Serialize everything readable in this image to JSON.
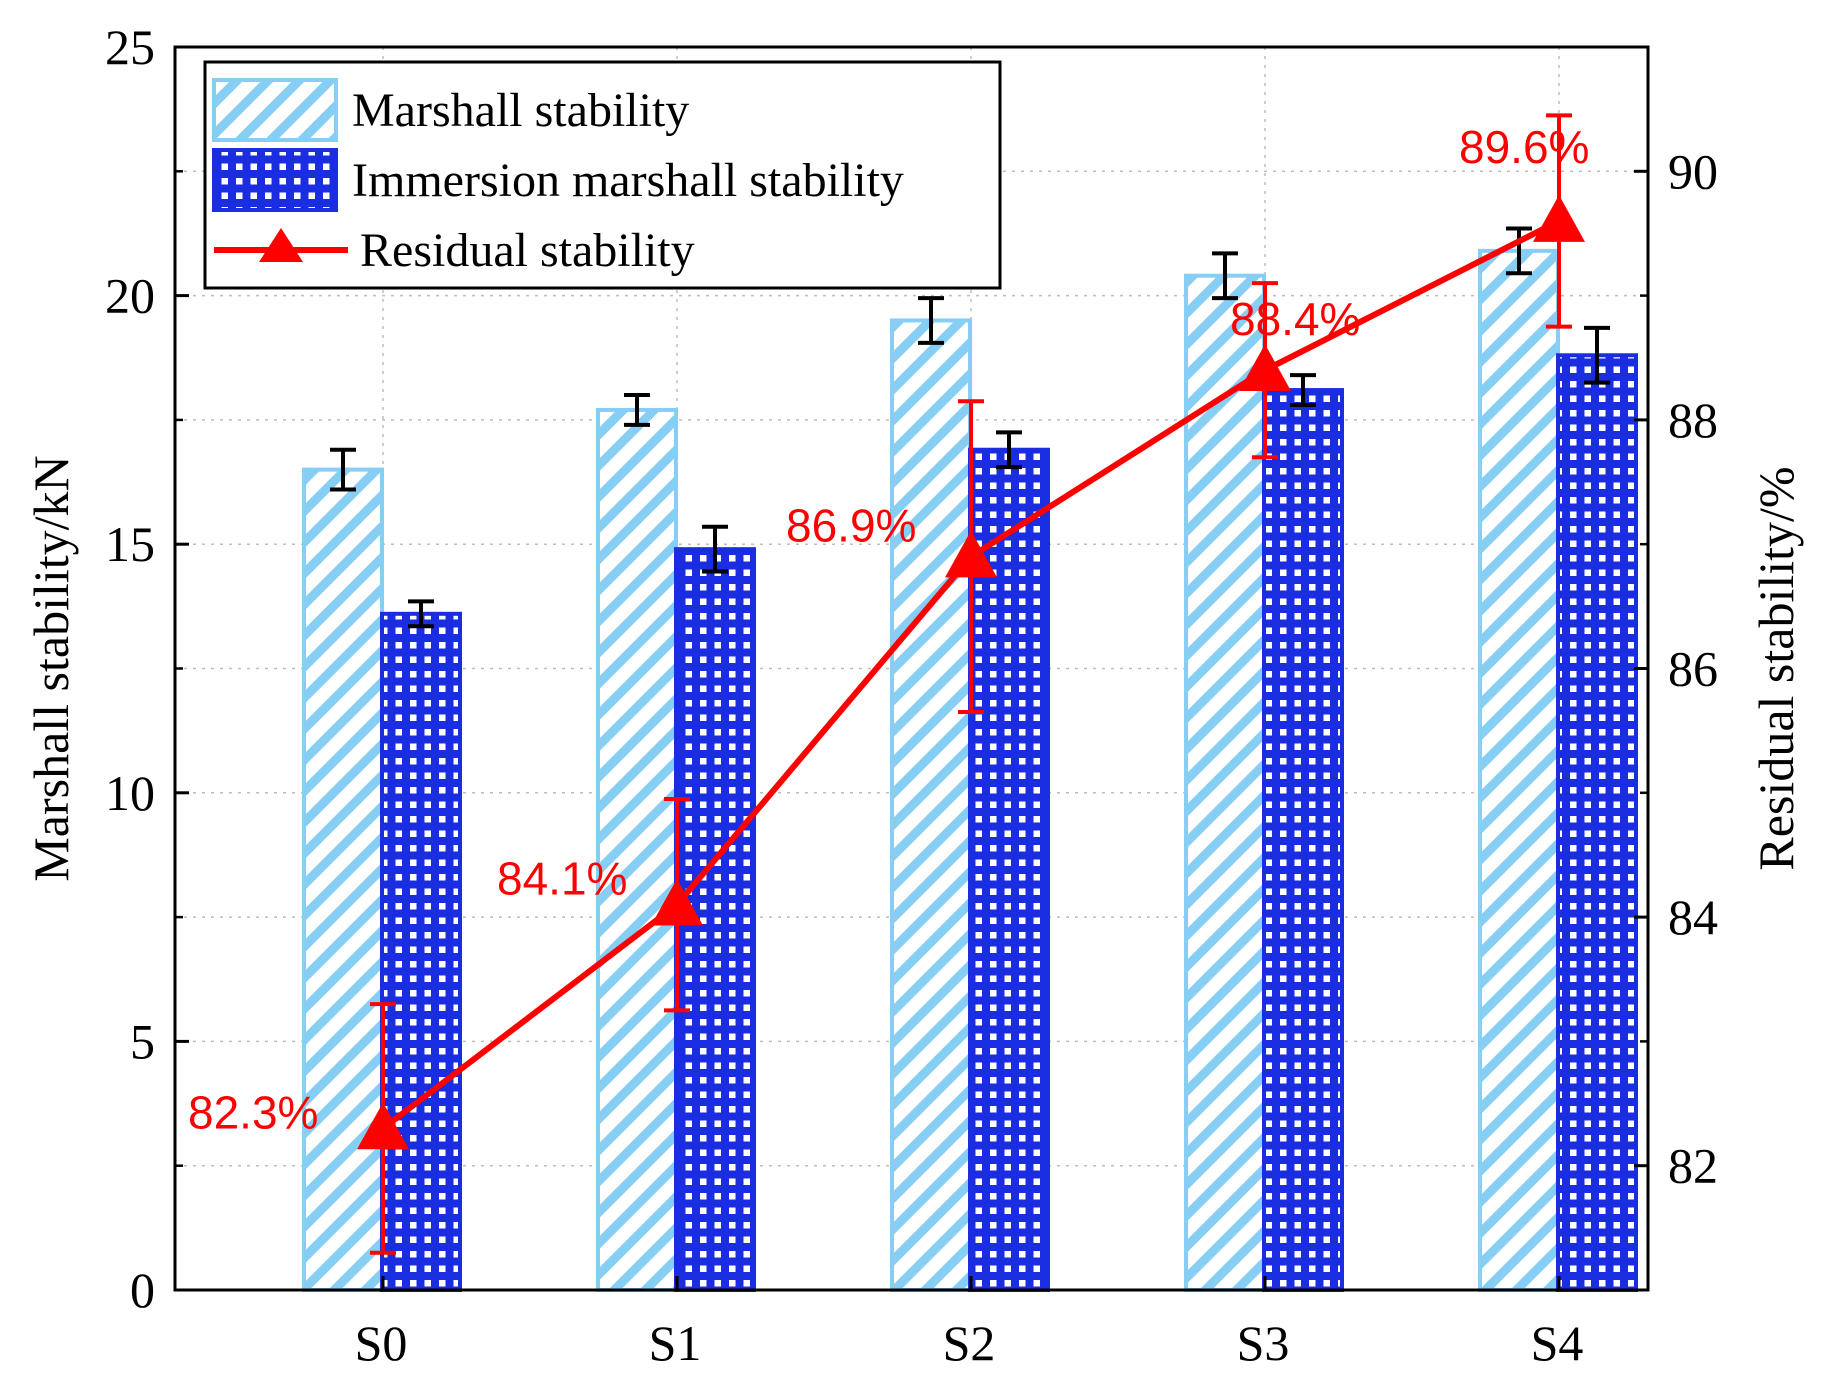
{
  "chart_data": {
    "type": "bar+line",
    "categories": [
      "S0",
      "S1",
      "S2",
      "S3",
      "S4"
    ],
    "series": [
      {
        "name": "Marshall stability",
        "axis": "left",
        "values": [
          16.5,
          17.7,
          19.5,
          20.4,
          20.9
        ],
        "errors": [
          0.4,
          0.3,
          0.45,
          0.45,
          0.45
        ],
        "color": "#87cef5",
        "pattern": "diagonal-hatch"
      },
      {
        "name": "Immersion marshall stability",
        "axis": "left",
        "values": [
          13.6,
          14.9,
          16.9,
          18.1,
          18.8
        ],
        "errors": [
          0.25,
          0.45,
          0.35,
          0.3,
          0.55
        ],
        "color": "#1a2de0",
        "pattern": "grid"
      },
      {
        "name": "Residual stability",
        "axis": "right",
        "type": "line",
        "values": [
          82.3,
          84.1,
          86.9,
          88.4,
          89.6
        ],
        "errors": [
          1.0,
          0.85,
          1.25,
          0.7,
          0.85
        ],
        "labels": [
          "82.3%",
          "84.1%",
          "86.9%",
          "88.4%",
          "89.6%"
        ],
        "color": "#ff0000",
        "marker": "triangle"
      }
    ],
    "ylabel_left": "Marshall stability/kN",
    "ylabel_right": "Residual stability/%",
    "ylim_left": [
      0,
      25
    ],
    "ylim_right": [
      81,
      91
    ],
    "yticks_left": [
      "0",
      "5",
      "10",
      "15",
      "20",
      "25"
    ],
    "yticks_right": [
      "82",
      "84",
      "86",
      "88",
      "90"
    ],
    "legend_location": "top-left",
    "grid": "dotted horizontal"
  }
}
